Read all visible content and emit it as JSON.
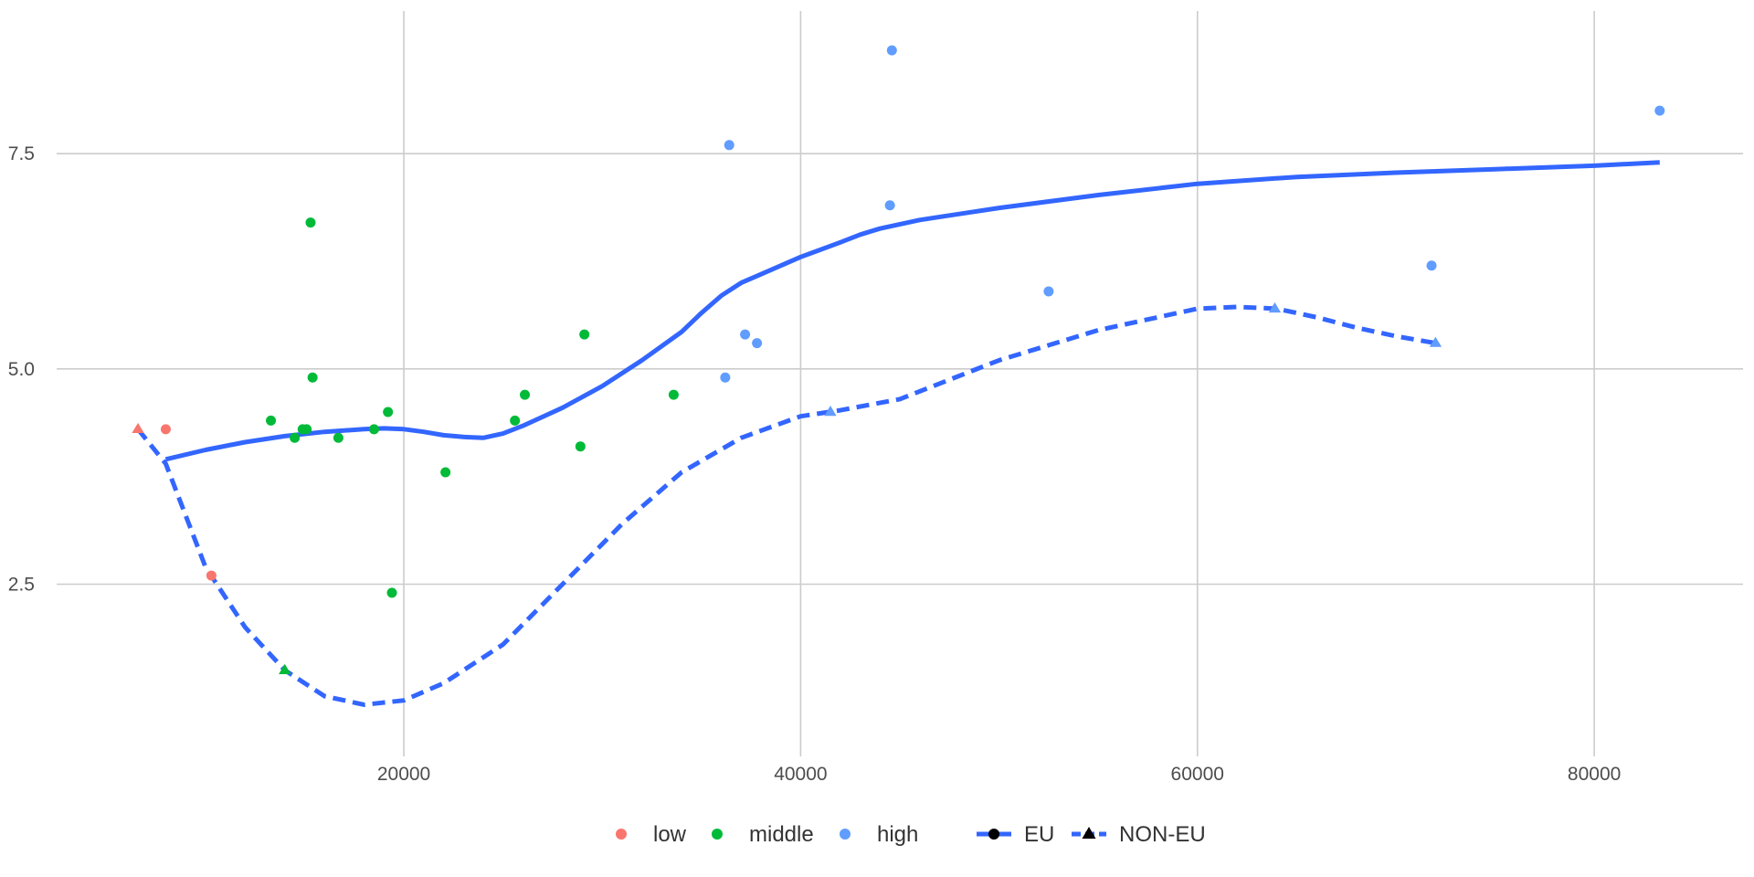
{
  "chart_data": {
    "type": "scatter",
    "title": "",
    "xlabel": "",
    "ylabel": "",
    "xlim": [
      2500,
      87500
    ],
    "ylim": [
      0.5,
      9.2
    ],
    "x_ticks": [
      20000,
      40000,
      60000,
      80000
    ],
    "x_tick_labels": [
      "20000",
      "40000",
      "60000",
      "80000"
    ],
    "y_ticks": [
      2.5,
      5.0,
      7.5
    ],
    "y_tick_labels": [
      "2.5",
      "5.0",
      "7.5"
    ],
    "grid": true,
    "legend_position": "bottom",
    "colors": {
      "low": "#F8766D",
      "middle": "#00BA38",
      "high": "#619CFF",
      "smooth": "#3366FF"
    },
    "color_legend": [
      "low",
      "middle",
      "high"
    ],
    "linetype_legend": [
      "EU",
      "NON-EU"
    ],
    "points": [
      {
        "x": 8000,
        "y": 4.3,
        "group": "low",
        "region": "EU"
      },
      {
        "x": 10300,
        "y": 2.6,
        "group": "low",
        "region": "EU"
      },
      {
        "x": 6600,
        "y": 4.3,
        "group": "low",
        "region": "NON-EU"
      },
      {
        "x": 13300,
        "y": 4.4,
        "group": "middle",
        "region": "EU"
      },
      {
        "x": 14500,
        "y": 4.2,
        "group": "middle",
        "region": "EU"
      },
      {
        "x": 14900,
        "y": 4.3,
        "group": "middle",
        "region": "EU"
      },
      {
        "x": 15100,
        "y": 4.3,
        "group": "middle",
        "region": "EU"
      },
      {
        "x": 15300,
        "y": 6.7,
        "group": "middle",
        "region": "EU"
      },
      {
        "x": 15400,
        "y": 4.9,
        "group": "middle",
        "region": "EU"
      },
      {
        "x": 16700,
        "y": 4.2,
        "group": "middle",
        "region": "EU"
      },
      {
        "x": 18500,
        "y": 4.3,
        "group": "middle",
        "region": "EU"
      },
      {
        "x": 19200,
        "y": 4.5,
        "group": "middle",
        "region": "EU"
      },
      {
        "x": 19400,
        "y": 2.4,
        "group": "middle",
        "region": "EU"
      },
      {
        "x": 22100,
        "y": 3.8,
        "group": "middle",
        "region": "EU"
      },
      {
        "x": 25600,
        "y": 4.4,
        "group": "middle",
        "region": "EU"
      },
      {
        "x": 26100,
        "y": 4.7,
        "group": "middle",
        "region": "EU"
      },
      {
        "x": 28900,
        "y": 4.1,
        "group": "middle",
        "region": "EU"
      },
      {
        "x": 29100,
        "y": 5.4,
        "group": "middle",
        "region": "EU"
      },
      {
        "x": 33600,
        "y": 4.7,
        "group": "middle",
        "region": "EU"
      },
      {
        "x": 14000,
        "y": 1.5,
        "group": "middle",
        "region": "NON-EU"
      },
      {
        "x": 36200,
        "y": 4.9,
        "group": "high",
        "region": "EU"
      },
      {
        "x": 36400,
        "y": 7.6,
        "group": "high",
        "region": "EU"
      },
      {
        "x": 37200,
        "y": 5.4,
        "group": "high",
        "region": "EU"
      },
      {
        "x": 37800,
        "y": 5.3,
        "group": "high",
        "region": "EU"
      },
      {
        "x": 44500,
        "y": 6.9,
        "group": "high",
        "region": "EU"
      },
      {
        "x": 44600,
        "y": 8.7,
        "group": "high",
        "region": "EU"
      },
      {
        "x": 52500,
        "y": 5.9,
        "group": "high",
        "region": "EU"
      },
      {
        "x": 71800,
        "y": 6.2,
        "group": "high",
        "region": "EU"
      },
      {
        "x": 83300,
        "y": 8.0,
        "group": "high",
        "region": "EU"
      },
      {
        "x": 41500,
        "y": 4.5,
        "group": "high",
        "region": "NON-EU"
      },
      {
        "x": 63900,
        "y": 5.7,
        "group": "high",
        "region": "NON-EU"
      },
      {
        "x": 72000,
        "y": 5.3,
        "group": "high",
        "region": "NON-EU"
      }
    ],
    "series": [
      {
        "name": "EU",
        "linetype": "solid",
        "x": [
          8000,
          10000,
          12000,
          14000,
          16000,
          18000,
          19000,
          20000,
          21000,
          22000,
          23000,
          24000,
          25000,
          26000,
          28000,
          30000,
          32000,
          34000,
          35000,
          36000,
          37000,
          38000,
          40000,
          42000,
          43000,
          44000,
          46000,
          48000,
          50000,
          55000,
          60000,
          65000,
          70000,
          75000,
          80000,
          83300
        ],
        "y": [
          3.95,
          4.06,
          4.15,
          4.22,
          4.27,
          4.3,
          4.31,
          4.3,
          4.27,
          4.23,
          4.21,
          4.2,
          4.25,
          4.34,
          4.55,
          4.8,
          5.1,
          5.43,
          5.65,
          5.85,
          6.0,
          6.1,
          6.3,
          6.47,
          6.56,
          6.63,
          6.73,
          6.8,
          6.87,
          7.02,
          7.15,
          7.23,
          7.28,
          7.32,
          7.36,
          7.4
        ]
      },
      {
        "name": "NON-EU",
        "linetype": "dashed",
        "x": [
          6600,
          8000,
          10000,
          12000,
          14000,
          16000,
          18000,
          20000,
          22000,
          25000,
          28000,
          31000,
          34000,
          37000,
          40000,
          42000,
          45000,
          50000,
          55000,
          60000,
          62000,
          64000,
          66000,
          68000,
          70000,
          72000
        ],
        "y": [
          4.3,
          3.9,
          2.7,
          2.0,
          1.5,
          1.2,
          1.1,
          1.15,
          1.35,
          1.8,
          2.5,
          3.2,
          3.8,
          4.2,
          4.45,
          4.52,
          4.65,
          5.1,
          5.45,
          5.7,
          5.72,
          5.7,
          5.6,
          5.48,
          5.38,
          5.3
        ]
      }
    ]
  }
}
